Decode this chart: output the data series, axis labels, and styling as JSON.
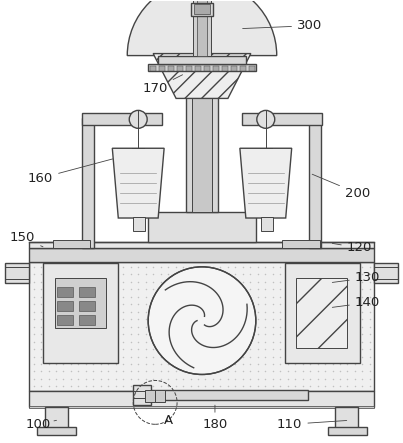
{
  "bg_color": "#ffffff",
  "lc": "#444444",
  "lc2": "#666666",
  "fc_body": "#f2f2f2",
  "fc_gray": "#e0e0e0",
  "fc_dgray": "#cccccc",
  "fc_lgray": "#eeeeee",
  "dot_color": "#bbbbbb",
  "label_color": "#222222",
  "label_fs": 9.5,
  "arrow_lw": 0.6
}
